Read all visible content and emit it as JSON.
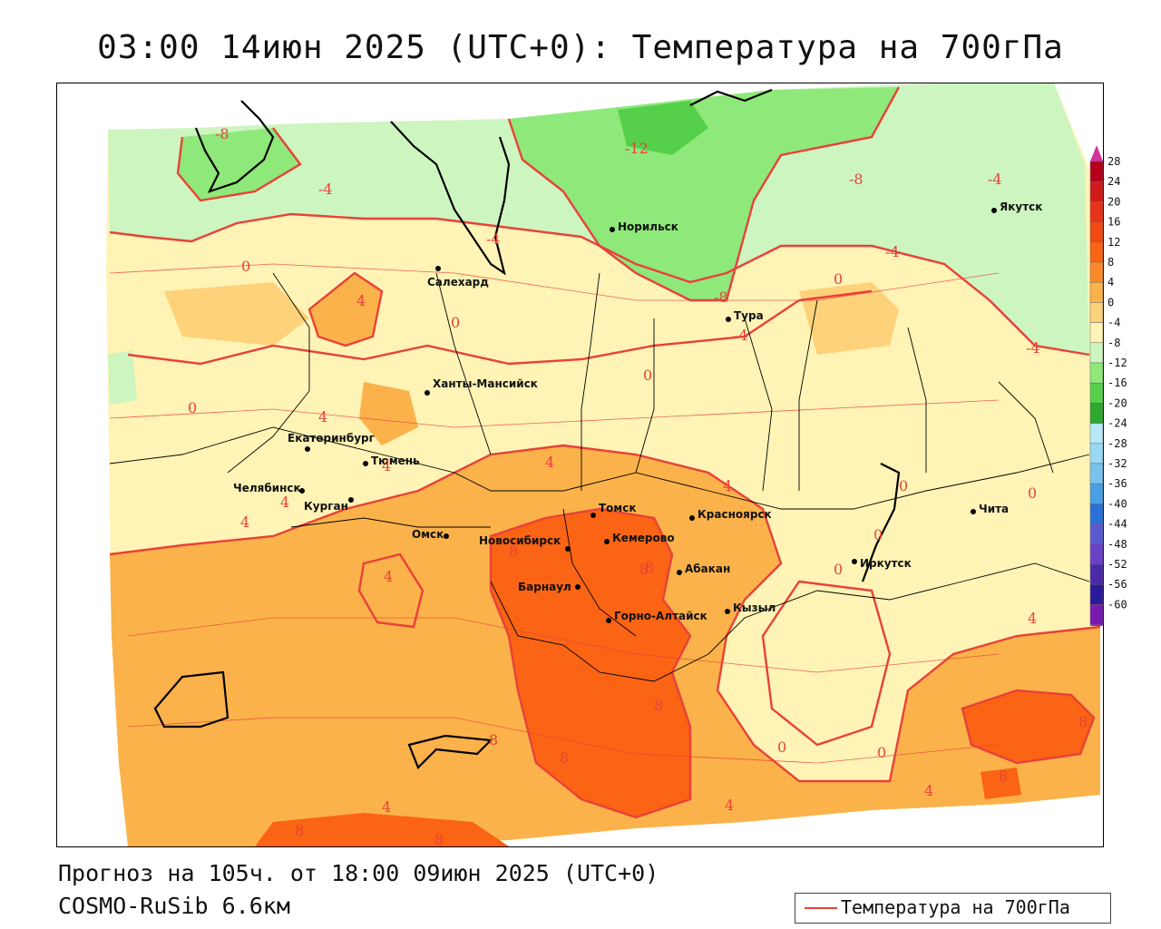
{
  "title": "03:00 14июн 2025 (UTC+0): Температура на 700гПа",
  "footer": {
    "forecast": "Прогноз на 105ч. от 18:00 09июн 2025 (UTC+0)",
    "model": "COSMO-RuSib 6.6км"
  },
  "legend": {
    "label": "Температура на 700гПа",
    "line_color": "#e8413a"
  },
  "colorbar": {
    "ticks": [
      "28",
      "24",
      "20",
      "16",
      "12",
      "8",
      "4",
      "0",
      "-4",
      "-8",
      "-12",
      "-16",
      "-20",
      "-24",
      "-28",
      "-32",
      "-36",
      "-40",
      "-44",
      "-48",
      "-52",
      "-56",
      "-60"
    ],
    "colors": [
      "#b5001a",
      "#d21a1a",
      "#e8321a",
      "#f04a12",
      "#fa6414",
      "#fc8a2a",
      "#fbb24a",
      "#fdd27a",
      "#fff3b5",
      "#cdf5c0",
      "#8fe87a",
      "#56d04a",
      "#2ea82e",
      "#b8e8f8",
      "#98d8f4",
      "#78c4ee",
      "#4aa0e4",
      "#2a70d8",
      "#5a5ad0",
      "#6a40c8",
      "#4a2aa8",
      "#2a1a98",
      "#7a1ab0"
    ],
    "top_cap_color": "#d2329a",
    "bottom_cap_color": "#9a28b4"
  },
  "cities": [
    {
      "name": "Норильск"
    },
    {
      "name": "Якутск"
    },
    {
      "name": "Салехард"
    },
    {
      "name": "Тура"
    },
    {
      "name": "Ханты-Мансийск"
    },
    {
      "name": "Екатеринбург"
    },
    {
      "name": "Тюмень"
    },
    {
      "name": "Челябинск"
    },
    {
      "name": "Курган"
    },
    {
      "name": "Омск"
    },
    {
      "name": "Новосибирск"
    },
    {
      "name": "Томск"
    },
    {
      "name": "Кемерово"
    },
    {
      "name": "Красноярск"
    },
    {
      "name": "Барнаул"
    },
    {
      "name": "Абакан"
    },
    {
      "name": "Горно-Алтайск"
    },
    {
      "name": "Кызыл"
    },
    {
      "name": "Иркутск"
    },
    {
      "name": "Чита"
    }
  ],
  "isotherm_labels": [
    "-8",
    "-4",
    "-12",
    "-8",
    "-4",
    "-4",
    "-4",
    "0",
    "-8",
    "-4",
    "0",
    "4",
    "0",
    "0",
    "-4",
    "0",
    "4",
    "4",
    "4",
    "4",
    "4",
    "4",
    "8",
    "8",
    "0",
    "0",
    "0",
    "0",
    "4",
    "4",
    "4",
    "8",
    "8",
    "8",
    "8",
    "0",
    "0",
    "4",
    "8",
    "8",
    "4",
    "8",
    "8"
  ]
}
